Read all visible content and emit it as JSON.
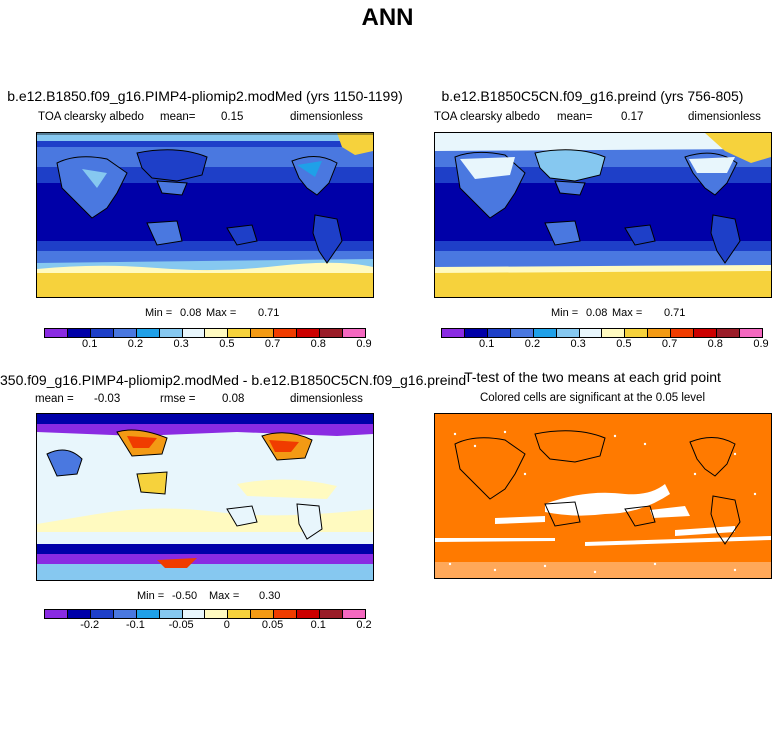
{
  "figure_title": "ANN",
  "colors": {
    "scale": [
      "#8a2be2",
      "#0000a8",
      "#1e3fc8",
      "#4a78e0",
      "#1fa0e8",
      "#86c8f0",
      "#e8f6fc",
      "#fffac0",
      "#f6d23c",
      "#f39a14",
      "#f03c00",
      "#cc0000",
      "#9a1c28",
      "#f468c0"
    ],
    "ttest": "#ff7a00"
  },
  "chart_data": [
    {
      "type": "heatmap",
      "panel": "top-left",
      "title": "b.e12.B1850.f09_g16.PIMP4-pliomip2.modMed (yrs 1150-1199)",
      "variable": "TOA clearsky albedo",
      "mean_label": "mean=",
      "mean": "0.15",
      "units": "dimensionless",
      "min_label": "Min =",
      "min": "0.08",
      "max_label": "Max =",
      "max": "0.71",
      "colorbar_ticks": [
        "0.1",
        "0.2",
        "0.3",
        "0.5",
        "0.7",
        "0.8",
        "0.9"
      ]
    },
    {
      "type": "heatmap",
      "panel": "top-right",
      "title": "b.e12.B1850C5CN.f09_g16.preind (yrs 756-805)",
      "variable": "TOA clearsky albedo",
      "mean_label": "mean=",
      "mean": "0.17",
      "units": "dimensionless",
      "min_label": "Min =",
      "min": "0.08",
      "max_label": "Max =",
      "max": "0.71",
      "colorbar_ticks": [
        "0.1",
        "0.2",
        "0.3",
        "0.5",
        "0.7",
        "0.8",
        "0.9"
      ]
    },
    {
      "type": "heatmap",
      "panel": "bottom-left",
      "title": "350.f09_g16.PIMP4-pliomip2.modMed - b.e12.B1850C5CN.f09_g16.preind",
      "mean_label": "mean =",
      "mean": "-0.03",
      "rmse_label": "rmse =",
      "rmse": "0.08",
      "units": "dimensionless",
      "min_label": "Min =",
      "min": "-0.50",
      "max_label": "Max =",
      "max": "0.30",
      "colorbar_ticks": [
        "-0.2",
        "-0.1",
        "-0.05",
        "0",
        "0.05",
        "0.1",
        "0.2"
      ]
    },
    {
      "type": "heatmap",
      "panel": "bottom-right",
      "title": "T-test of the two means at each grid point",
      "subtitle": "Colored cells are significant at the 0.05 level"
    }
  ]
}
